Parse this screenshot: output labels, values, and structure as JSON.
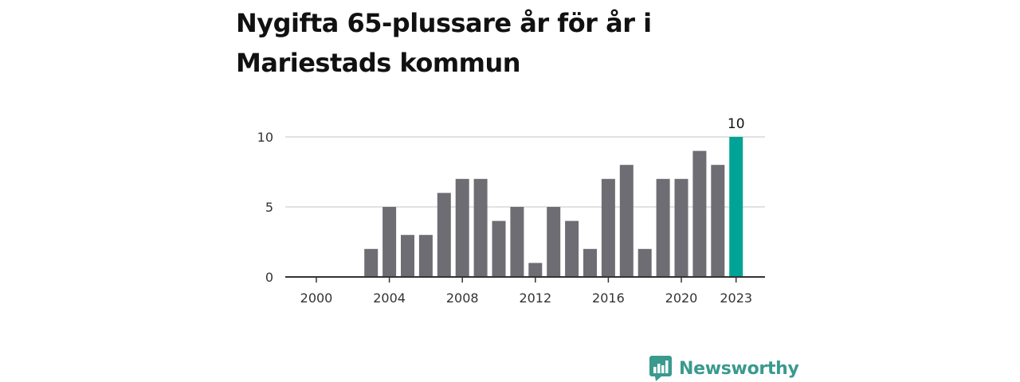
{
  "title": "Nygifta 65-plussare år för år i Mariestads kommun",
  "brand": {
    "name": "Newsworthy",
    "icon": "newsworthy-logo-icon",
    "color": "#3a9a8e"
  },
  "colors": {
    "bar": "#6e6d74",
    "highlight": "#00a396",
    "grid": "#d9d9d9",
    "axis": "#333333"
  },
  "chart_data": {
    "type": "bar",
    "title": "Nygifta 65-plussare år för år i Mariestads kommun",
    "xlabel": "",
    "ylabel": "",
    "x": [
      2000,
      2001,
      2002,
      2003,
      2004,
      2005,
      2006,
      2007,
      2008,
      2009,
      2010,
      2011,
      2012,
      2013,
      2014,
      2015,
      2016,
      2017,
      2018,
      2019,
      2020,
      2021,
      2022,
      2023
    ],
    "values": [
      0,
      0,
      0,
      2,
      5,
      3,
      3,
      6,
      7,
      7,
      4,
      5,
      1,
      5,
      4,
      2,
      7,
      8,
      2,
      7,
      7,
      9,
      8,
      10
    ],
    "x_ticks": [
      "2000",
      "2004",
      "2008",
      "2012",
      "2016",
      "2020",
      "2023"
    ],
    "y_ticks": [
      "0",
      "5",
      "10"
    ],
    "ylim": [
      0,
      10
    ],
    "grid": true,
    "highlight": {
      "x": 2023,
      "label": "10"
    }
  }
}
